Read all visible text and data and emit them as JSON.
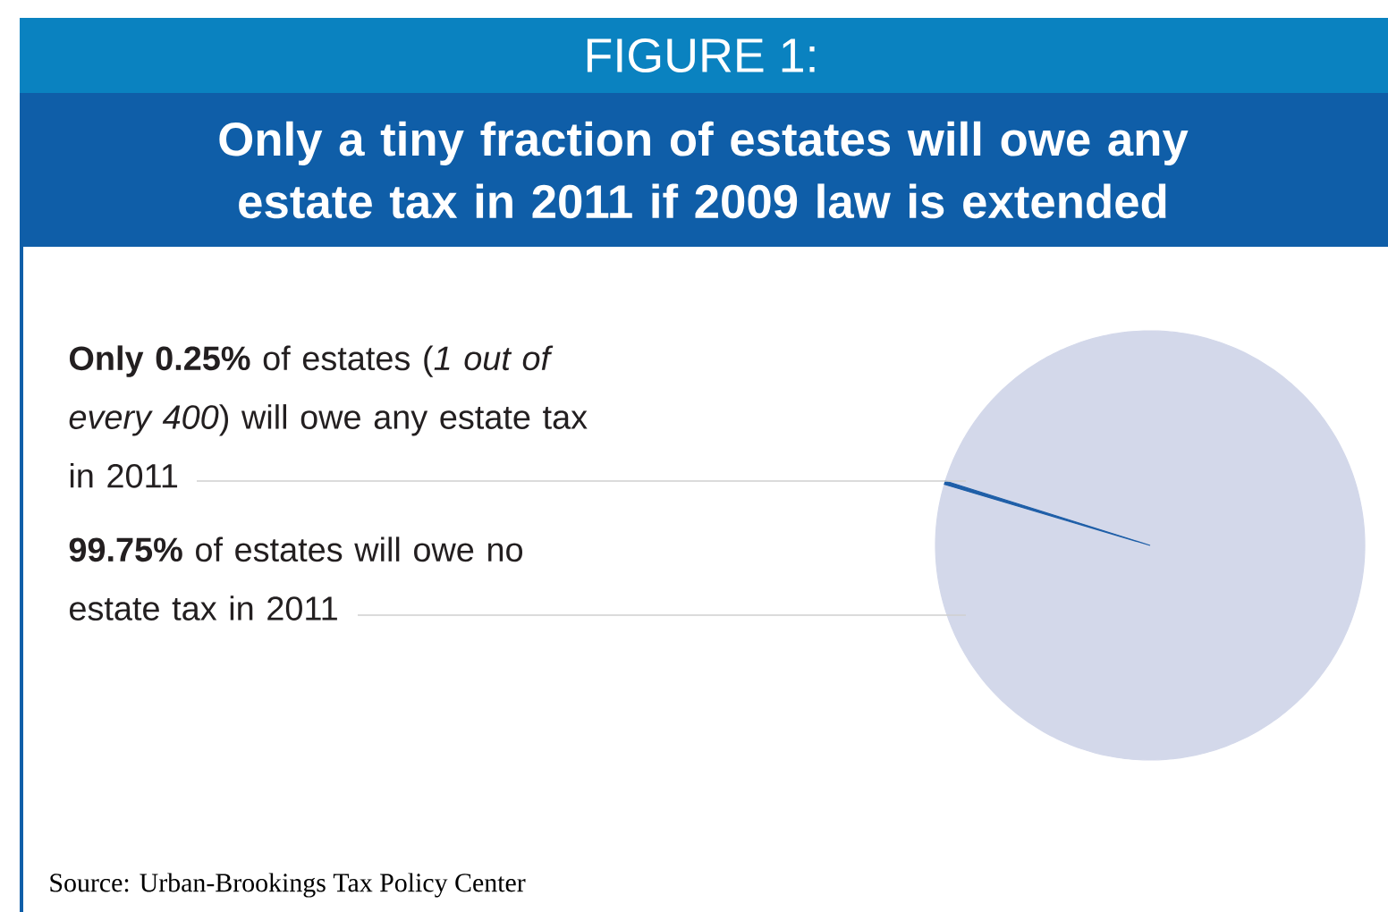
{
  "chart_data": {
    "type": "pie",
    "title": "FIGURE 1:",
    "subtitle": "Only a tiny fraction of estates will owe any estate tax in 2011 if 2009 law is extended",
    "categories": [
      "**Only 0.25%** of estates (*1 out of every 400*) will owe any estate tax in 2011",
      "**99.75%** of estates will owe no estate tax in 2011"
    ],
    "values": [
      0.25,
      99.75
    ],
    "colors": [
      "#1f5fa8",
      "#d3d8ea"
    ],
    "annotations": [
      "Source: Urban-Brookings Tax Policy Center"
    ]
  }
}
